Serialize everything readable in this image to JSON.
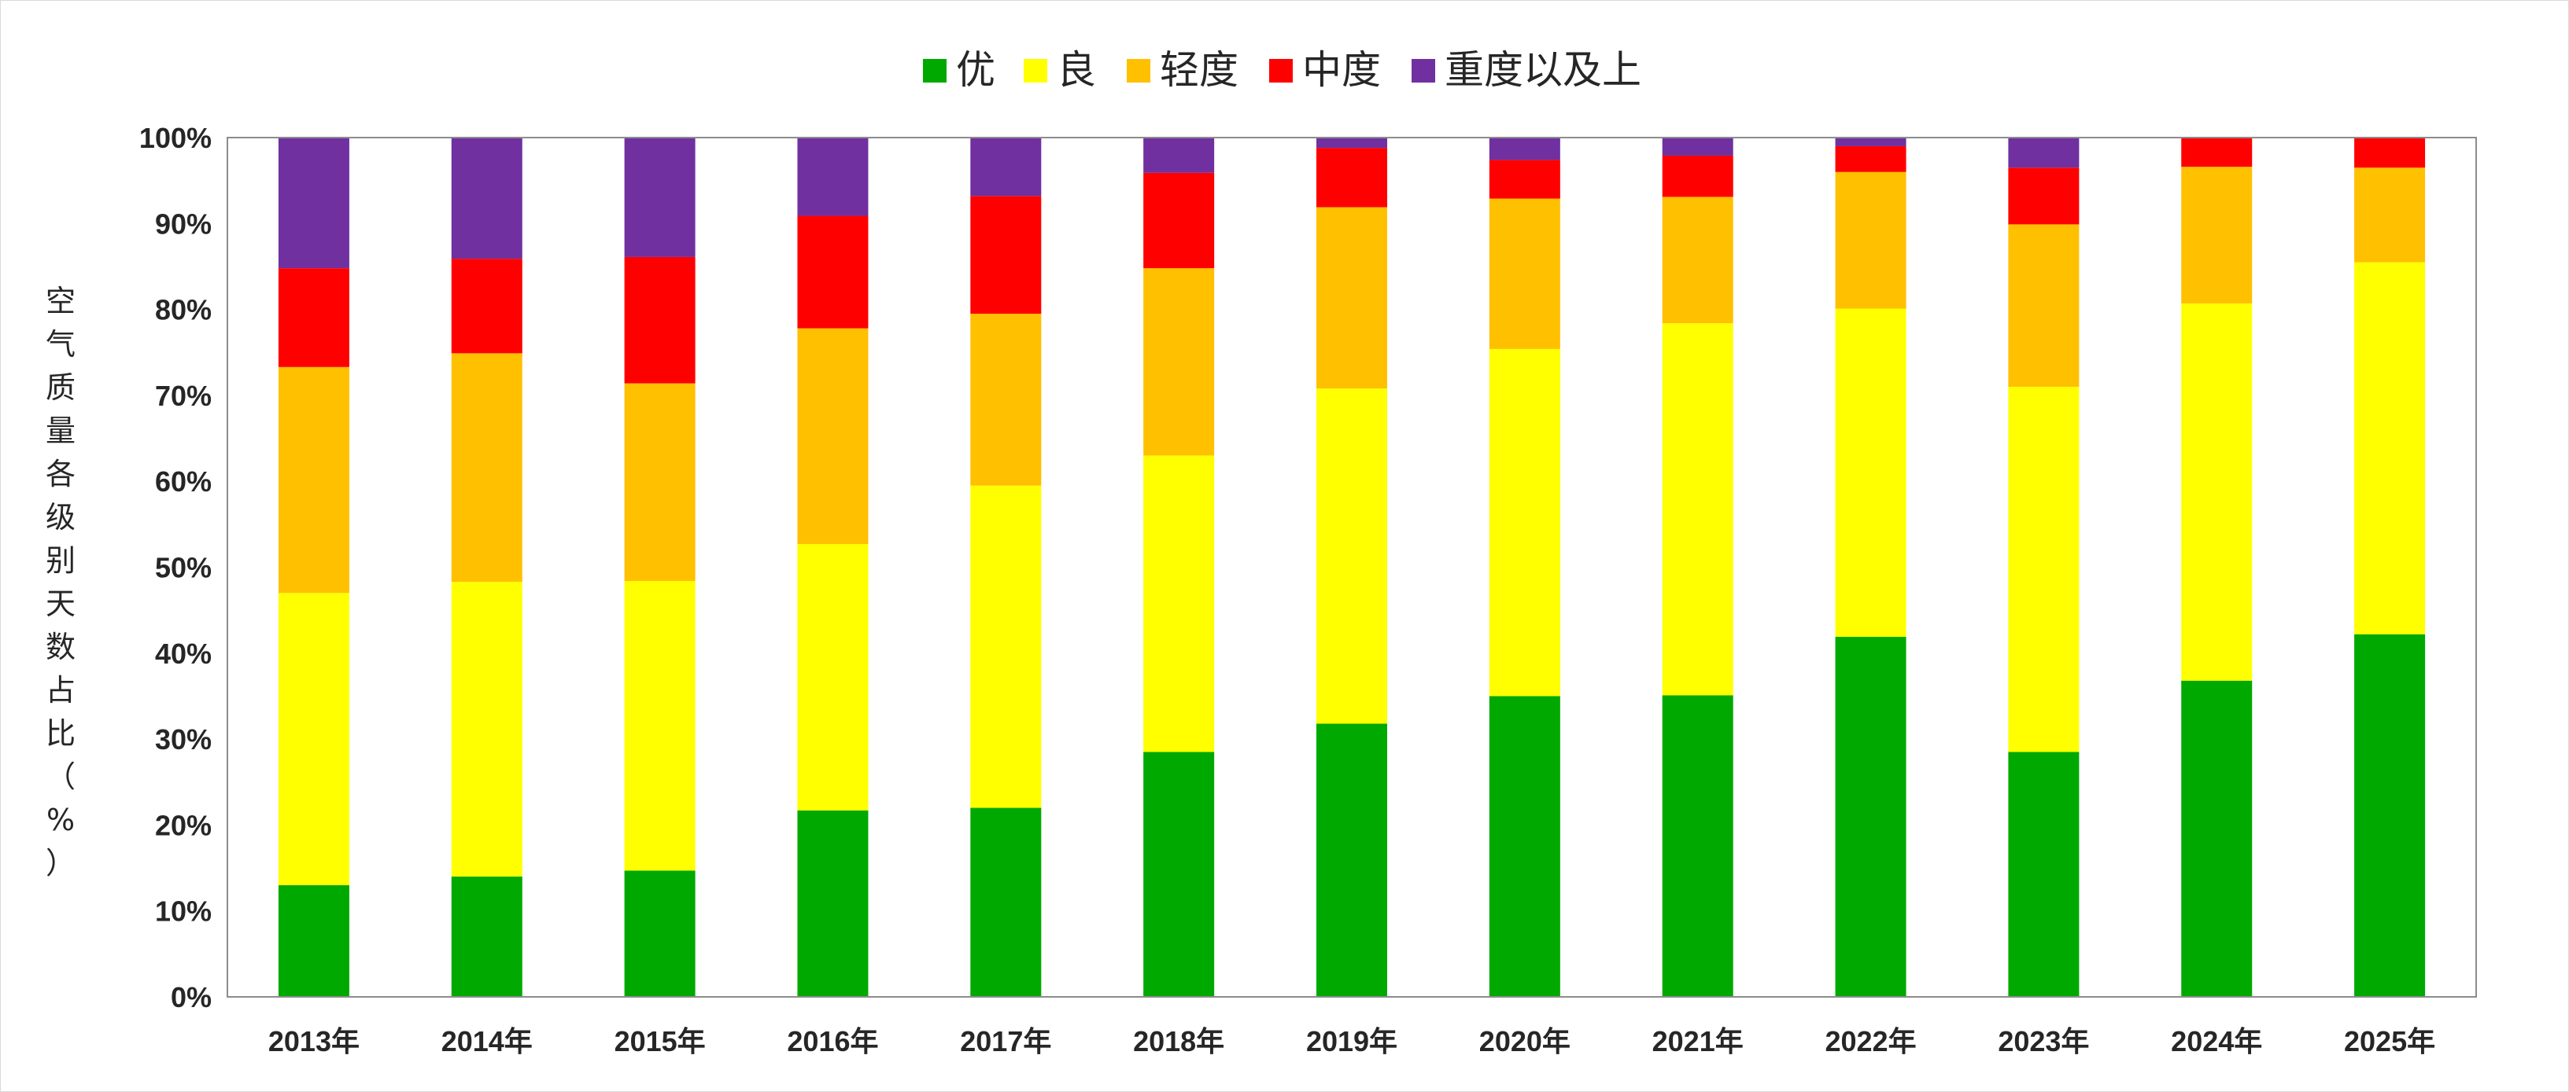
{
  "chart_data": {
    "type": "bar",
    "stacked": true,
    "percent_stacked": true,
    "categories": [
      "2013年",
      "2014年",
      "2015年",
      "2016年",
      "2017年",
      "2018年",
      "2019年",
      "2020年",
      "2021年",
      "2022年",
      "2023年",
      "2024年",
      "2025年"
    ],
    "series": [
      {
        "name": "优",
        "color": "#00A900",
        "values": [
          13.0,
          14.0,
          14.7,
          21.7,
          22.0,
          28.5,
          31.8,
          35.0,
          35.1,
          41.9,
          28.5,
          36.8,
          42.2
        ]
      },
      {
        "name": "良",
        "color": "#FFFF00",
        "values": [
          34.0,
          34.3,
          33.7,
          31.0,
          37.5,
          34.5,
          39.0,
          40.4,
          43.3,
          38.2,
          42.5,
          43.9,
          43.3
        ]
      },
      {
        "name": "轻度",
        "color": "#FFC000",
        "values": [
          26.3,
          26.6,
          23.0,
          25.1,
          20.0,
          21.8,
          21.1,
          17.5,
          14.7,
          15.9,
          18.9,
          15.9,
          11.0
        ]
      },
      {
        "name": "中度",
        "color": "#FF0000",
        "values": [
          11.5,
          11.0,
          14.7,
          13.1,
          13.7,
          11.1,
          6.9,
          4.5,
          4.8,
          3.0,
          6.6,
          3.4,
          3.5
        ]
      },
      {
        "name": "重度以及上",
        "color": "#7030A0",
        "values": [
          15.2,
          14.1,
          13.9,
          9.1,
          6.8,
          4.1,
          1.2,
          2.6,
          2.1,
          1.0,
          3.5,
          0,
          0
        ]
      }
    ],
    "yticks": [
      "0%",
      "10%",
      "20%",
      "30%",
      "40%",
      "50%",
      "60%",
      "70%",
      "80%",
      "90%",
      "100%"
    ],
    "ylim": [
      0,
      100
    ],
    "ylabel": "空气质量各级别天数占比（%）",
    "xlabel": "",
    "title": "",
    "legend_position": "top",
    "grid": false
  }
}
